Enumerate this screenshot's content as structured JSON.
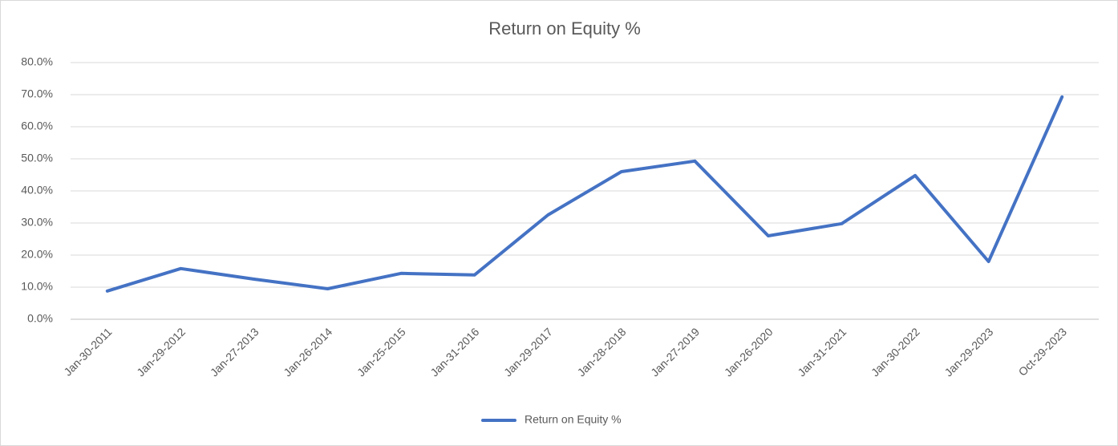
{
  "chart_data": {
    "type": "line",
    "title": "Return on Equity %",
    "categories": [
      "Jan-30-2011",
      "Jan-29-2012",
      "Jan-27-2013",
      "Jan-26-2014",
      "Jan-25-2015",
      "Jan-31-2016",
      "Jan-29-2017",
      "Jan-28-2018",
      "Jan-27-2019",
      "Jan-26-2020",
      "Jan-31-2021",
      "Jan-30-2022",
      "Jan-29-2023",
      "Oct-29-2023"
    ],
    "series": [
      {
        "name": "Return on Equity %",
        "color": "#4472c4",
        "values": [
          8.8,
          15.8,
          12.5,
          9.5,
          14.3,
          13.8,
          32.5,
          46,
          49.3,
          26,
          29.8,
          44.8,
          18,
          69.3
        ]
      }
    ],
    "ylim": [
      0,
      80
    ],
    "yticks": [
      {
        "value": 0,
        "label": "0.0%"
      },
      {
        "value": 10,
        "label": "10.0%"
      },
      {
        "value": 20,
        "label": "20.0%"
      },
      {
        "value": 30,
        "label": "30.0%"
      },
      {
        "value": 40,
        "label": "40.0%"
      },
      {
        "value": 50,
        "label": "50.0%"
      },
      {
        "value": 60,
        "label": "60.0%"
      },
      {
        "value": 70,
        "label": "70.0%"
      },
      {
        "value": 80,
        "label": "80.0%"
      }
    ],
    "grid": true,
    "legend": "bottom"
  }
}
